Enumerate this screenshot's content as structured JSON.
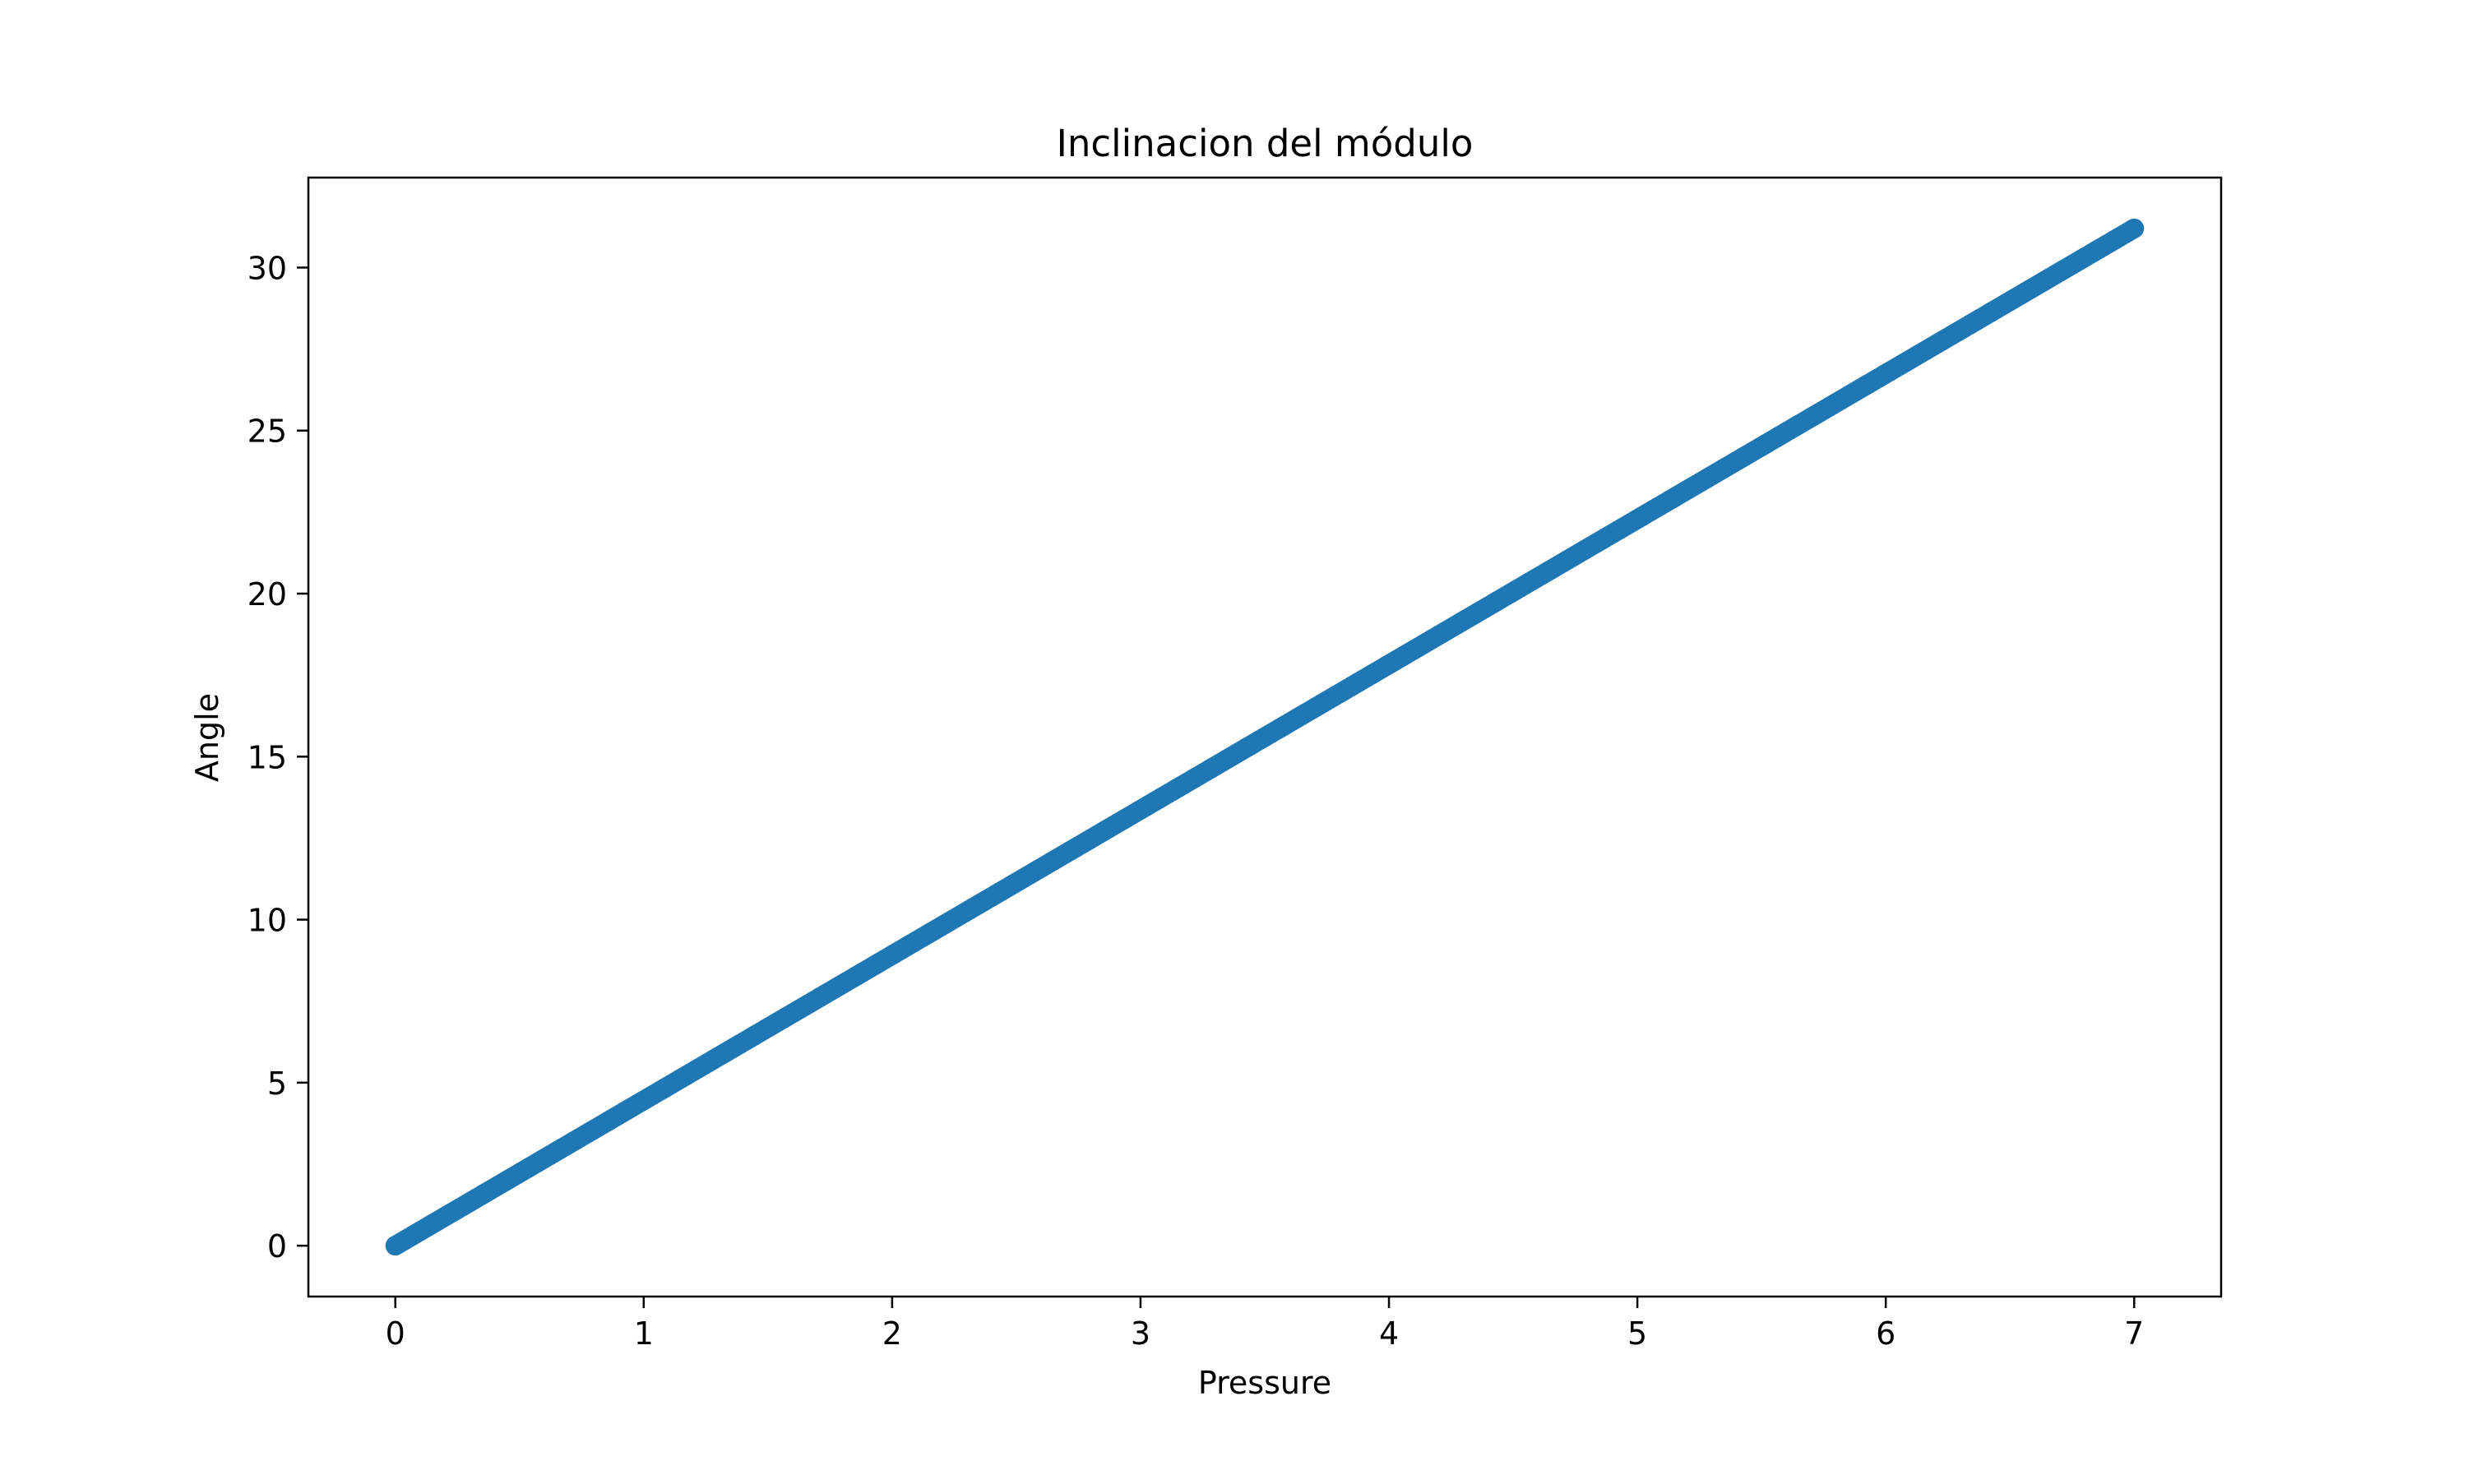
{
  "chart_data": {
    "type": "scatter",
    "title": "Inclinacion del módulo",
    "xlabel": "Pressure",
    "ylabel": "Angle",
    "xlim": [
      -0.35,
      7.35
    ],
    "ylim": [
      -1.56,
      32.76
    ],
    "xticks": [
      0,
      1,
      2,
      3,
      4,
      5,
      6,
      7
    ],
    "yticks": [
      0,
      5,
      10,
      15,
      20,
      25,
      30
    ],
    "grid": false,
    "legend": "none",
    "series": [
      {
        "color": "#1f77b4",
        "x_range": [
          0,
          7
        ],
        "y_range": [
          0,
          31.2
        ],
        "point_count": 701,
        "relation": "linear"
      }
    ]
  }
}
